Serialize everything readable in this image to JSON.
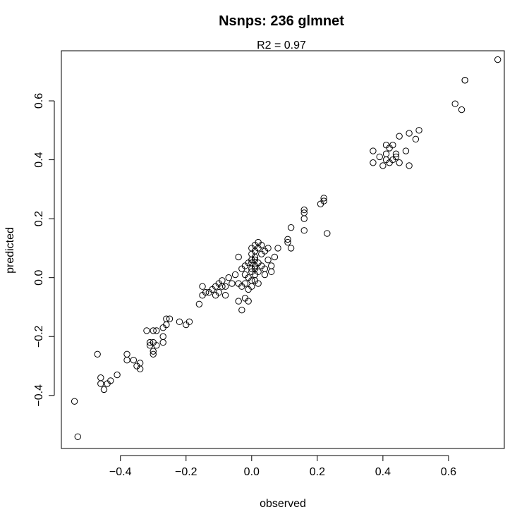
{
  "chart_data": {
    "type": "scatter",
    "title": "Nsnps: 236  glmnet",
    "subtitle": "R2 = 0.97",
    "xlabel": "observed",
    "ylabel": "predicted",
    "xlim": [
      -0.58,
      0.77
    ],
    "ylim": [
      -0.58,
      0.77
    ],
    "x_ticks": [
      -0.4,
      -0.2,
      0.0,
      0.2,
      0.4,
      0.6
    ],
    "x_tick_labels": [
      "−0.4",
      "−0.2",
      "0.0",
      "0.2",
      "0.4",
      "0.6"
    ],
    "y_ticks": [
      -0.4,
      -0.2,
      0.0,
      0.2,
      0.4,
      0.6
    ],
    "y_tick_labels": [
      "−0.4",
      "−0.2",
      "0.0",
      "0.2",
      "0.4",
      "0.6"
    ],
    "grid": false,
    "marker": "open-circle",
    "points": [
      [
        -0.54,
        -0.42
      ],
      [
        -0.53,
        -0.54
      ],
      [
        -0.47,
        -0.26
      ],
      [
        -0.46,
        -0.34
      ],
      [
        -0.46,
        -0.36
      ],
      [
        -0.45,
        -0.38
      ],
      [
        -0.44,
        -0.36
      ],
      [
        -0.43,
        -0.35
      ],
      [
        -0.41,
        -0.33
      ],
      [
        -0.38,
        -0.26
      ],
      [
        -0.38,
        -0.28
      ],
      [
        -0.36,
        -0.28
      ],
      [
        -0.35,
        -0.3
      ],
      [
        -0.34,
        -0.29
      ],
      [
        -0.34,
        -0.31
      ],
      [
        -0.32,
        -0.18
      ],
      [
        -0.31,
        -0.22
      ],
      [
        -0.31,
        -0.23
      ],
      [
        -0.3,
        -0.18
      ],
      [
        -0.3,
        -0.25
      ],
      [
        -0.3,
        -0.26
      ],
      [
        -0.3,
        -0.22
      ],
      [
        -0.29,
        -0.18
      ],
      [
        -0.29,
        -0.23
      ],
      [
        -0.27,
        -0.17
      ],
      [
        -0.27,
        -0.2
      ],
      [
        -0.27,
        -0.22
      ],
      [
        -0.26,
        -0.16
      ],
      [
        -0.26,
        -0.14
      ],
      [
        -0.25,
        -0.14
      ],
      [
        -0.22,
        -0.15
      ],
      [
        -0.2,
        -0.16
      ],
      [
        -0.19,
        -0.15
      ],
      [
        -0.16,
        -0.09
      ],
      [
        -0.15,
        -0.03
      ],
      [
        -0.15,
        -0.06
      ],
      [
        -0.14,
        -0.05
      ],
      [
        -0.13,
        -0.05
      ],
      [
        -0.12,
        -0.04
      ],
      [
        -0.11,
        -0.03
      ],
      [
        -0.11,
        -0.06
      ],
      [
        -0.1,
        -0.02
      ],
      [
        -0.1,
        -0.05
      ],
      [
        -0.09,
        -0.01
      ],
      [
        -0.09,
        -0.03
      ],
      [
        -0.08,
        -0.06
      ],
      [
        -0.08,
        -0.03
      ],
      [
        -0.07,
        0.0
      ],
      [
        -0.06,
        -0.02
      ],
      [
        -0.05,
        0.01
      ],
      [
        -0.04,
        -0.08
      ],
      [
        -0.04,
        0.07
      ],
      [
        -0.04,
        -0.02
      ],
      [
        -0.03,
        -0.11
      ],
      [
        -0.03,
        0.03
      ],
      [
        -0.03,
        -0.03
      ],
      [
        -0.02,
        -0.07
      ],
      [
        -0.02,
        0.04
      ],
      [
        -0.02,
        -0.02
      ],
      [
        -0.02,
        0.01
      ],
      [
        -0.01,
        0.05
      ],
      [
        -0.01,
        0.0
      ],
      [
        -0.01,
        -0.04
      ],
      [
        -0.01,
        -0.08
      ],
      [
        0.0,
        0.03
      ],
      [
        0.0,
        -0.01
      ],
      [
        0.0,
        0.08
      ],
      [
        0.0,
        0.1
      ],
      [
        0.0,
        0.06
      ],
      [
        0.0,
        -0.03
      ],
      [
        0.0,
        0.02
      ],
      [
        0.0,
        0.05
      ],
      [
        0.01,
        0.09
      ],
      [
        0.01,
        0.07
      ],
      [
        0.01,
        0.04
      ],
      [
        0.01,
        -0.01
      ],
      [
        0.01,
        0.11
      ],
      [
        0.01,
        0.03
      ],
      [
        0.01,
        0.01
      ],
      [
        0.01,
        0.06
      ],
      [
        0.02,
        0.1
      ],
      [
        0.02,
        0.12
      ],
      [
        0.02,
        0.05
      ],
      [
        0.02,
        0.02
      ],
      [
        0.02,
        -0.02
      ],
      [
        0.03,
        0.08
      ],
      [
        0.03,
        0.04
      ],
      [
        0.03,
        0.11
      ],
      [
        0.04,
        0.03
      ],
      [
        0.04,
        0.09
      ],
      [
        0.04,
        0.01
      ],
      [
        0.05,
        0.1
      ],
      [
        0.05,
        0.06
      ],
      [
        0.06,
        0.04
      ],
      [
        0.06,
        0.02
      ],
      [
        0.07,
        0.07
      ],
      [
        0.08,
        0.1
      ],
      [
        0.11,
        0.13
      ],
      [
        0.11,
        0.12
      ],
      [
        0.12,
        0.1
      ],
      [
        0.12,
        0.17
      ],
      [
        0.16,
        0.16
      ],
      [
        0.16,
        0.2
      ],
      [
        0.16,
        0.22
      ],
      [
        0.16,
        0.23
      ],
      [
        0.21,
        0.25
      ],
      [
        0.22,
        0.26
      ],
      [
        0.22,
        0.27
      ],
      [
        0.23,
        0.15
      ],
      [
        0.37,
        0.43
      ],
      [
        0.37,
        0.39
      ],
      [
        0.39,
        0.41
      ],
      [
        0.4,
        0.38
      ],
      [
        0.41,
        0.45
      ],
      [
        0.41,
        0.42
      ],
      [
        0.41,
        0.4
      ],
      [
        0.42,
        0.44
      ],
      [
        0.42,
        0.39
      ],
      [
        0.43,
        0.45
      ],
      [
        0.43,
        0.4
      ],
      [
        0.44,
        0.41
      ],
      [
        0.44,
        0.42
      ],
      [
        0.45,
        0.39
      ],
      [
        0.45,
        0.48
      ],
      [
        0.47,
        0.43
      ],
      [
        0.48,
        0.49
      ],
      [
        0.48,
        0.38
      ],
      [
        0.5,
        0.47
      ],
      [
        0.51,
        0.5
      ],
      [
        0.62,
        0.59
      ],
      [
        0.64,
        0.57
      ],
      [
        0.65,
        0.67
      ],
      [
        0.65,
        0.67
      ],
      [
        0.75,
        0.74
      ]
    ]
  }
}
